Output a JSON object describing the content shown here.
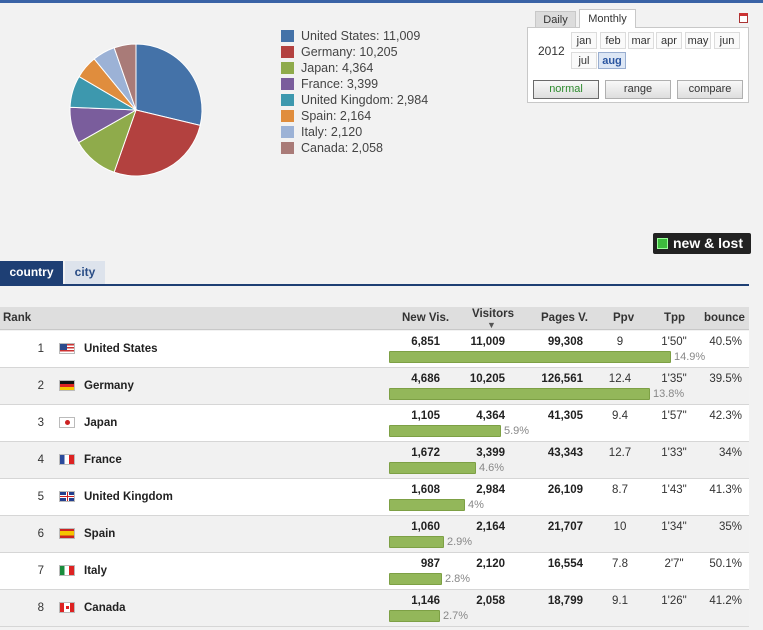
{
  "colors": {
    "accent": "#1e3f74",
    "bar": "#93b75a",
    "new_lost": "#3dbb3d"
  },
  "legend": [
    {
      "label": "United States: 11,009",
      "value": 11009,
      "color": "#4472a8"
    },
    {
      "label": "Germany: 10,205",
      "value": 10205,
      "color": "#b3413f"
    },
    {
      "label": "Japan: 4,364",
      "value": 4364,
      "color": "#8fab4b"
    },
    {
      "label": "France: 3,399",
      "value": 3399,
      "color": "#7a5d9c"
    },
    {
      "label": "United Kingdom: 2,984",
      "value": 2984,
      "color": "#3d98ae"
    },
    {
      "label": "Spain: 2,164",
      "value": 2164,
      "color": "#e08d3d"
    },
    {
      "label": "Italy: 2,120",
      "value": 2120,
      "color": "#9cb2d6"
    },
    {
      "label": "Canada: 2,058",
      "value": 2058,
      "color": "#a97b78"
    }
  ],
  "date_picker": {
    "tabs": {
      "daily": "Daily",
      "monthly": "Monthly"
    },
    "year": "2012",
    "months": [
      "jan",
      "feb",
      "mar",
      "apr",
      "may",
      "jun",
      "jul",
      "aug"
    ],
    "active_month": "aug",
    "modes": [
      "normal",
      "range",
      "compare"
    ],
    "active_mode": "normal"
  },
  "new_lost_label": "new & lost",
  "view_tabs": [
    "country",
    "city"
  ],
  "active_view": "country",
  "table": {
    "headers": {
      "rank": "Rank",
      "new_visitors": "New Vis.",
      "visitors": "Visitors",
      "pages": "Pages V.",
      "ppv": "Ppv",
      "tpp": "Tpp",
      "bounce": "bounce"
    },
    "sorted_by": "visitors",
    "rows": [
      {
        "rank": "1",
        "country": "United States",
        "flag": "us",
        "new_visitors": "6,851",
        "visitors": "11,009",
        "pages": "99,308",
        "ppv": "9",
        "tpp": "1'50\"",
        "bounce": "40.5%",
        "share": "14.9%",
        "share_value": 14.9
      },
      {
        "rank": "2",
        "country": "Germany",
        "flag": "de",
        "new_visitors": "4,686",
        "visitors": "10,205",
        "pages": "126,561",
        "ppv": "12.4",
        "tpp": "1'35\"",
        "bounce": "39.5%",
        "share": "13.8%",
        "share_value": 13.8
      },
      {
        "rank": "3",
        "country": "Japan",
        "flag": "jp",
        "new_visitors": "1,105",
        "visitors": "4,364",
        "pages": "41,305",
        "ppv": "9.4",
        "tpp": "1'57\"",
        "bounce": "42.3%",
        "share": "5.9%",
        "share_value": 5.9
      },
      {
        "rank": "4",
        "country": "France",
        "flag": "fr",
        "new_visitors": "1,672",
        "visitors": "3,399",
        "pages": "43,343",
        "ppv": "12.7",
        "tpp": "1'33\"",
        "bounce": "34%",
        "share": "4.6%",
        "share_value": 4.6
      },
      {
        "rank": "5",
        "country": "United Kingdom",
        "flag": "gb",
        "new_visitors": "1,608",
        "visitors": "2,984",
        "pages": "26,109",
        "ppv": "8.7",
        "tpp": "1'43\"",
        "bounce": "41.3%",
        "share": "4%",
        "share_value": 4
      },
      {
        "rank": "6",
        "country": "Spain",
        "flag": "es",
        "new_visitors": "1,060",
        "visitors": "2,164",
        "pages": "21,707",
        "ppv": "10",
        "tpp": "1'34\"",
        "bounce": "35%",
        "share": "2.9%",
        "share_value": 2.9
      },
      {
        "rank": "7",
        "country": "Italy",
        "flag": "it",
        "new_visitors": "987",
        "visitors": "2,120",
        "pages": "16,554",
        "ppv": "7.8",
        "tpp": "2'7\"",
        "bounce": "50.1%",
        "share": "2.8%",
        "share_value": 2.8
      },
      {
        "rank": "8",
        "country": "Canada",
        "flag": "ca",
        "new_visitors": "1,146",
        "visitors": "2,058",
        "pages": "18,799",
        "ppv": "9.1",
        "tpp": "1'26\"",
        "bounce": "41.2%",
        "share": "2.7%",
        "share_value": 2.7
      }
    ]
  }
}
